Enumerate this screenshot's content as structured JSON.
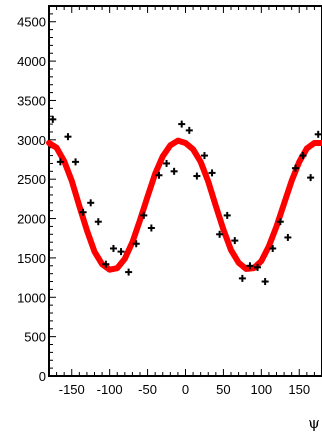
{
  "chart_data": {
    "type": "scatter",
    "title": "",
    "xlabel": "ψ",
    "ylabel": "",
    "xlim": [
      -180,
      180
    ],
    "ylim": [
      0,
      4700
    ],
    "x_ticks": [
      -150,
      -100,
      -50,
      0,
      50,
      100,
      150
    ],
    "x_tick_labels": [
      "-150",
      "-100",
      "-50",
      "0",
      "50",
      "100",
      "150"
    ],
    "y_ticks": [
      0,
      500,
      1000,
      1500,
      2000,
      2500,
      3000,
      3500,
      4000,
      4500
    ],
    "y_tick_labels": [
      "0",
      "500",
      "1000",
      "1500",
      "2000",
      "2500",
      "3000",
      "3500",
      "4000",
      "4500"
    ],
    "grid": false,
    "series": [
      {
        "kind": "points",
        "color": "#000000",
        "marker": "plus",
        "x": [
          -175,
          -165,
          -155,
          -145,
          -135,
          -125,
          -115,
          -105,
          -95,
          -85,
          -75,
          -65,
          -55,
          -45,
          -35,
          -25,
          -15,
          -5,
          5,
          15,
          25,
          35,
          45,
          55,
          65,
          75,
          85,
          95,
          105,
          115,
          125,
          135,
          145,
          155,
          165,
          175
        ],
        "y": [
          3260,
          2720,
          3040,
          2720,
          2080,
          2200,
          1960,
          1420,
          1620,
          1580,
          1320,
          1680,
          2040,
          1880,
          2550,
          2700,
          2600,
          3200,
          3120,
          2540,
          2800,
          2580,
          1800,
          2040,
          1720,
          1240,
          1400,
          1380,
          1200,
          1620,
          1960,
          1760,
          2640,
          2800,
          2520,
          3070
        ]
      },
      {
        "kind": "line",
        "color": "#ff0000",
        "x": [
          -180,
          -170,
          -160,
          -150,
          -140,
          -130,
          -120,
          -110,
          -100,
          -90,
          -80,
          -70,
          -60,
          -50,
          -40,
          -30,
          -20,
          -10,
          0,
          10,
          20,
          30,
          40,
          50,
          60,
          70,
          80,
          90,
          100,
          110,
          120,
          130,
          140,
          150,
          160,
          170,
          180
        ],
        "y": [
          2960,
          2900,
          2730,
          2480,
          2160,
          1850,
          1580,
          1420,
          1350,
          1370,
          1490,
          1700,
          1980,
          2280,
          2570,
          2790,
          2930,
          2990,
          2960,
          2880,
          2720,
          2470,
          2160,
          1860,
          1600,
          1440,
          1360,
          1370,
          1460,
          1650,
          1900,
          2190,
          2480,
          2720,
          2890,
          2960,
          2960
        ]
      }
    ]
  }
}
